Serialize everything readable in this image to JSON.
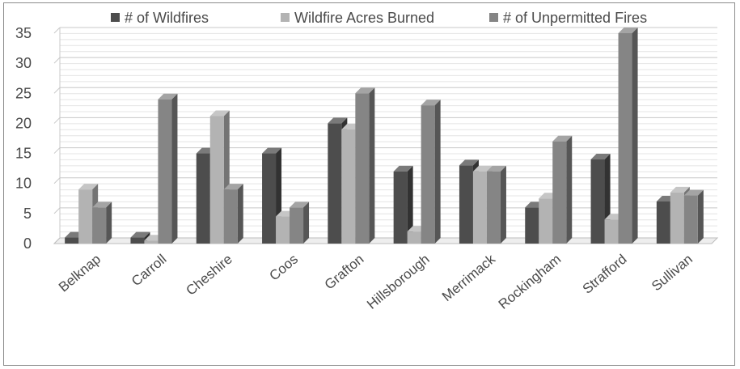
{
  "chart_data": {
    "type": "bar",
    "style": "3d-clustered-column",
    "title": "",
    "xlabel": "",
    "ylabel": "",
    "ylim": [
      0,
      35
    ],
    "ytick_step": 5,
    "grid": true,
    "legend_position": "top",
    "categories": [
      "Belknap",
      "Carroll",
      "Cheshire",
      "Coos",
      "Grafton",
      "Hillsborough",
      "Merrimack",
      "Rockingham",
      "Strafford",
      "Sullivan"
    ],
    "series": [
      {
        "name": "# of Wildfires",
        "color": "#4d4d4d",
        "values": [
          1,
          1,
          15,
          15,
          20,
          12,
          13,
          6,
          14,
          7
        ]
      },
      {
        "name": "Wildfire Acres Burned",
        "color": "#b3b3b3",
        "values": [
          9,
          0.5,
          21.2,
          4.5,
          19,
          2,
          12,
          7.5,
          4,
          8.5
        ]
      },
      {
        "name": "# of Unpermitted Fires",
        "color": "#858585",
        "values": [
          6,
          24,
          9,
          6,
          25,
          23,
          12,
          17,
          35,
          8
        ]
      }
    ]
  }
}
